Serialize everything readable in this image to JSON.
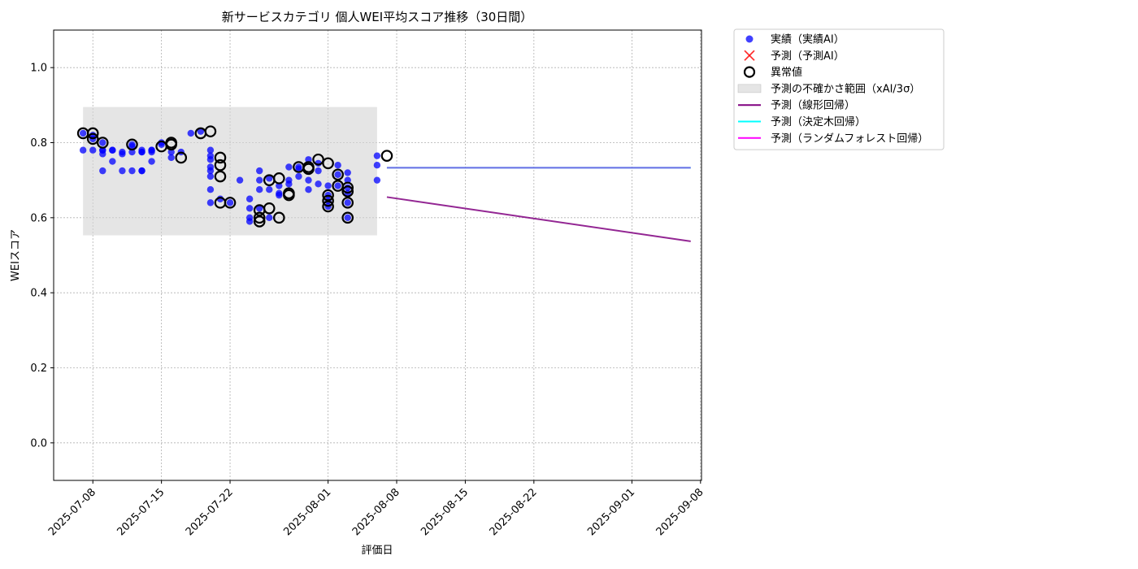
{
  "chart_data": {
    "type": "scatter",
    "title": "新サービスカテゴリ 個人WEI平均スコア推移（30日間）",
    "xlabel": "評価日",
    "ylabel": "WEIスコア",
    "xlim": [
      "2025-07-04",
      "2025-09-08"
    ],
    "ylim": [
      -0.1,
      1.1
    ],
    "yticks": [
      0.0,
      0.2,
      0.4,
      0.6,
      0.8,
      1.0
    ],
    "ytick_labels": [
      "0.0",
      "0.2",
      "0.4",
      "0.6",
      "0.8",
      "1.0"
    ],
    "xticks": [
      "2025-07-08",
      "2025-07-15",
      "2025-07-22",
      "2025-08-01",
      "2025-08-08",
      "2025-08-15",
      "2025-08-22",
      "2025-09-01",
      "2025-09-08"
    ],
    "grid": true,
    "legend_position": "outside-top-right",
    "colors": {
      "actual": "#0000ff",
      "predicted": "#ff0000",
      "outlier": "#000000",
      "band": "#d3d3d3",
      "linear": "#800080",
      "tree": "#00ffff",
      "forest": "#ff00ff",
      "merged_line": "#7a55e0"
    },
    "uncertainty_band": {
      "x_start": "2025-07-07",
      "x_end": "2025-08-06",
      "y_low": 0.553,
      "y_high": 0.895
    },
    "series": [
      {
        "name": "実績（実績AI）",
        "kind": "scatter",
        "points": [
          [
            "2025-07-07",
            0.78
          ],
          [
            "2025-07-07",
            0.825
          ],
          [
            "2025-07-08",
            0.81
          ],
          [
            "2025-07-08",
            0.82
          ],
          [
            "2025-07-08",
            0.78
          ],
          [
            "2025-07-09",
            0.725
          ],
          [
            "2025-07-09",
            0.8
          ],
          [
            "2025-07-09",
            0.78
          ],
          [
            "2025-07-09",
            0.78
          ],
          [
            "2025-07-09",
            0.77
          ],
          [
            "2025-07-10",
            0.78
          ],
          [
            "2025-07-10",
            0.75
          ],
          [
            "2025-07-10",
            0.78
          ],
          [
            "2025-07-11",
            0.725
          ],
          [
            "2025-07-11",
            0.775
          ],
          [
            "2025-07-11",
            0.77
          ],
          [
            "2025-07-12",
            0.775
          ],
          [
            "2025-07-12",
            0.79
          ],
          [
            "2025-07-12",
            0.795
          ],
          [
            "2025-07-12",
            0.725
          ],
          [
            "2025-07-13",
            0.775
          ],
          [
            "2025-07-13",
            0.775
          ],
          [
            "2025-07-13",
            0.78
          ],
          [
            "2025-07-13",
            0.725
          ],
          [
            "2025-07-13",
            0.725
          ],
          [
            "2025-07-14",
            0.75
          ],
          [
            "2025-07-14",
            0.78
          ],
          [
            "2025-07-14",
            0.775
          ],
          [
            "2025-07-14",
            0.78
          ],
          [
            "2025-07-15",
            0.795
          ],
          [
            "2025-07-15",
            0.8
          ],
          [
            "2025-07-16",
            0.775
          ],
          [
            "2025-07-16",
            0.76
          ],
          [
            "2025-07-17",
            0.775
          ],
          [
            "2025-07-18",
            0.825
          ],
          [
            "2025-07-19",
            0.83
          ],
          [
            "2025-07-20",
            0.78
          ],
          [
            "2025-07-20",
            0.765
          ],
          [
            "2025-07-20",
            0.755
          ],
          [
            "2025-07-20",
            0.735
          ],
          [
            "2025-07-20",
            0.725
          ],
          [
            "2025-07-20",
            0.71
          ],
          [
            "2025-07-20",
            0.675
          ],
          [
            "2025-07-20",
            0.64
          ],
          [
            "2025-07-21",
            0.65
          ],
          [
            "2025-07-22",
            0.64
          ],
          [
            "2025-07-23",
            0.7
          ],
          [
            "2025-07-24",
            0.65
          ],
          [
            "2025-07-24",
            0.625
          ],
          [
            "2025-07-24",
            0.6
          ],
          [
            "2025-07-24",
            0.59
          ],
          [
            "2025-07-25",
            0.675
          ],
          [
            "2025-07-25",
            0.625
          ],
          [
            "2025-07-25",
            0.725
          ],
          [
            "2025-07-25",
            0.7
          ],
          [
            "2025-07-26",
            0.675
          ],
          [
            "2025-07-26",
            0.705
          ],
          [
            "2025-07-26",
            0.6
          ],
          [
            "2025-07-27",
            0.685
          ],
          [
            "2025-07-27",
            0.66
          ],
          [
            "2025-07-27",
            0.665
          ],
          [
            "2025-07-28",
            0.7
          ],
          [
            "2025-07-28",
            0.735
          ],
          [
            "2025-07-28",
            0.69
          ],
          [
            "2025-07-29",
            0.71
          ],
          [
            "2025-07-29",
            0.73
          ],
          [
            "2025-07-29",
            0.735
          ],
          [
            "2025-07-30",
            0.7
          ],
          [
            "2025-07-30",
            0.675
          ],
          [
            "2025-07-30",
            0.755
          ],
          [
            "2025-07-31",
            0.725
          ],
          [
            "2025-07-31",
            0.745
          ],
          [
            "2025-07-31",
            0.69
          ],
          [
            "2025-08-01",
            0.66
          ],
          [
            "2025-08-01",
            0.63
          ],
          [
            "2025-08-01",
            0.645
          ],
          [
            "2025-08-01",
            0.685
          ],
          [
            "2025-08-02",
            0.74
          ],
          [
            "2025-08-02",
            0.715
          ],
          [
            "2025-08-02",
            0.685
          ],
          [
            "2025-08-03",
            0.72
          ],
          [
            "2025-08-03",
            0.7
          ],
          [
            "2025-08-03",
            0.68
          ],
          [
            "2025-08-03",
            0.665
          ],
          [
            "2025-08-03",
            0.64
          ],
          [
            "2025-08-03",
            0.6
          ],
          [
            "2025-08-06",
            0.765
          ],
          [
            "2025-08-06",
            0.74
          ],
          [
            "2025-08-06",
            0.7
          ]
        ]
      },
      {
        "name": "予測（予測AI）",
        "kind": "marker-x",
        "points": []
      },
      {
        "name": "異常値",
        "kind": "outlier-ring",
        "points": [
          [
            "2025-07-07",
            0.825
          ],
          [
            "2025-07-08",
            0.81
          ],
          [
            "2025-07-08",
            0.825
          ],
          [
            "2025-07-09",
            0.8
          ],
          [
            "2025-07-12",
            0.795
          ],
          [
            "2025-07-15",
            0.79
          ],
          [
            "2025-07-16",
            0.8
          ],
          [
            "2025-07-16",
            0.795
          ],
          [
            "2025-07-17",
            0.76
          ],
          [
            "2025-07-19",
            0.825
          ],
          [
            "2025-07-20",
            0.83
          ],
          [
            "2025-07-21",
            0.76
          ],
          [
            "2025-07-21",
            0.74
          ],
          [
            "2025-07-21",
            0.71
          ],
          [
            "2025-07-21",
            0.64
          ],
          [
            "2025-07-22",
            0.64
          ],
          [
            "2025-07-25",
            0.62
          ],
          [
            "2025-07-25",
            0.6
          ],
          [
            "2025-07-25",
            0.59
          ],
          [
            "2025-07-26",
            0.625
          ],
          [
            "2025-07-26",
            0.7
          ],
          [
            "2025-07-27",
            0.705
          ],
          [
            "2025-07-27",
            0.6
          ],
          [
            "2025-07-28",
            0.66
          ],
          [
            "2025-07-28",
            0.665
          ],
          [
            "2025-07-29",
            0.735
          ],
          [
            "2025-07-30",
            0.73
          ],
          [
            "2025-07-30",
            0.735
          ],
          [
            "2025-07-31",
            0.755
          ],
          [
            "2025-08-01",
            0.745
          ],
          [
            "2025-08-01",
            0.66
          ],
          [
            "2025-08-01",
            0.645
          ],
          [
            "2025-08-01",
            0.63
          ],
          [
            "2025-08-02",
            0.715
          ],
          [
            "2025-08-02",
            0.685
          ],
          [
            "2025-08-03",
            0.68
          ],
          [
            "2025-08-03",
            0.67
          ],
          [
            "2025-08-03",
            0.64
          ],
          [
            "2025-08-03",
            0.6
          ],
          [
            "2025-08-07",
            0.765
          ]
        ]
      },
      {
        "name": "予測（線形回帰）",
        "kind": "line",
        "points": [
          [
            "2025-08-07",
            0.655
          ],
          [
            "2025-09-07",
            0.537
          ]
        ]
      },
      {
        "name": "予測（決定木回帰）",
        "kind": "line",
        "points": [
          [
            "2025-08-07",
            0.733
          ],
          [
            "2025-09-07",
            0.733
          ]
        ]
      },
      {
        "name": "予測（ランダムフォレスト回帰）",
        "kind": "line",
        "points": [
          [
            "2025-08-07",
            0.733
          ],
          [
            "2025-09-07",
            0.733
          ]
        ]
      }
    ],
    "legend": [
      {
        "label": "実績（実績AI）",
        "symbol": "dot",
        "color_key": "actual"
      },
      {
        "label": "予測（予測AI）",
        "symbol": "x",
        "color_key": "predicted"
      },
      {
        "label": "異常値",
        "symbol": "ring",
        "color_key": "outlier"
      },
      {
        "label": "予測の不確かさ範囲（xAI/3σ）",
        "symbol": "patch",
        "color_key": "band"
      },
      {
        "label": "予測（線形回帰）",
        "symbol": "line",
        "color_key": "linear"
      },
      {
        "label": "予測（決定木回帰）",
        "symbol": "line",
        "color_key": "tree"
      },
      {
        "label": "予測（ランダムフォレスト回帰）",
        "symbol": "line",
        "color_key": "forest"
      }
    ]
  }
}
